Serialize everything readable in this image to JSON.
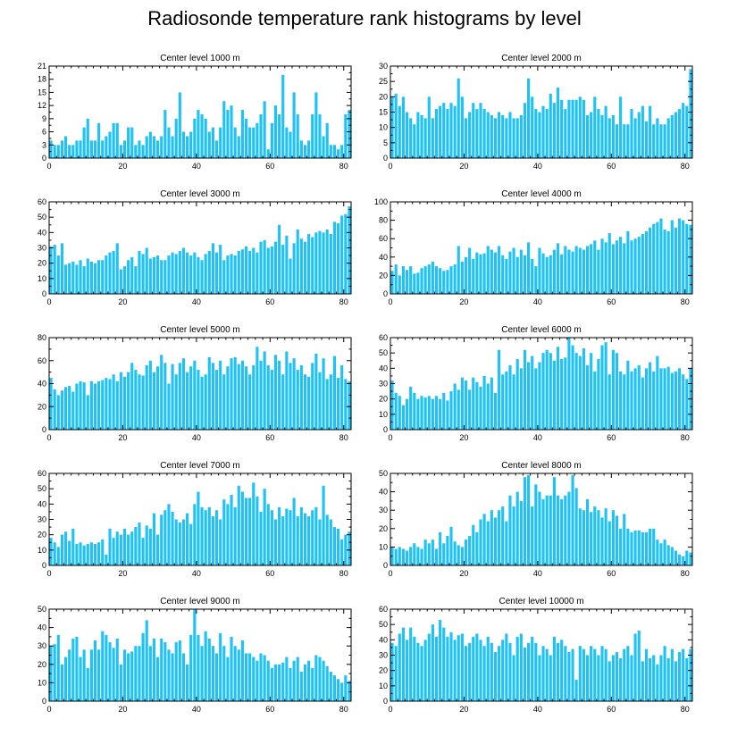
{
  "figure": {
    "title": "Radiosonde temperature rank histograms by level",
    "bar_color": "#1ec2f8",
    "axis_color": "#000000"
  },
  "chart_data": [
    {
      "type": "bar",
      "title": "Center level 1000 m",
      "xlim": [
        0,
        82
      ],
      "ylim": [
        0,
        21
      ],
      "xticks": [
        0,
        20,
        40,
        60,
        80
      ],
      "yticks": [
        0,
        3,
        6,
        9,
        12,
        15,
        18,
        21
      ],
      "values": [
        4,
        3,
        3,
        4,
        5,
        3,
        3,
        4,
        4,
        7,
        9,
        4,
        4,
        8,
        4,
        5,
        6,
        8,
        8,
        3,
        4,
        7,
        7,
        3,
        4,
        3,
        5,
        6,
        5,
        4,
        5,
        11,
        7,
        5,
        9,
        15,
        6,
        5,
        6,
        9,
        11,
        10,
        9,
        6,
        7,
        4,
        7,
        13,
        11,
        12,
        7,
        5,
        11,
        9,
        7,
        7,
        8,
        10,
        13,
        2,
        8,
        12,
        10,
        19,
        7,
        6,
        15,
        10,
        4,
        3,
        4,
        10,
        15,
        10,
        5,
        8,
        3,
        3,
        2,
        3,
        10,
        11
      ]
    },
    {
      "type": "bar",
      "title": "Center level 2000 m",
      "xlim": [
        0,
        82
      ],
      "ylim": [
        0,
        30
      ],
      "xticks": [
        0,
        20,
        40,
        60,
        80
      ],
      "yticks": [
        0,
        5,
        10,
        15,
        20,
        25,
        30
      ],
      "values": [
        20,
        21,
        17,
        20,
        15,
        13,
        11,
        15,
        14,
        13,
        20,
        13,
        16,
        17,
        18,
        16,
        18,
        17,
        26,
        20,
        13,
        15,
        18,
        16,
        18,
        16,
        15,
        14,
        13,
        15,
        14,
        13,
        15,
        13,
        13,
        14,
        18,
        26,
        20,
        16,
        15,
        17,
        16,
        21,
        18,
        23,
        19,
        16,
        19,
        19,
        19,
        20,
        19,
        14,
        15,
        20,
        16,
        14,
        17,
        13,
        14,
        11,
        20,
        11,
        11,
        16,
        13,
        15,
        17,
        12,
        17,
        11,
        13,
        11,
        11,
        13,
        14,
        15,
        16,
        18,
        17,
        29
      ]
    },
    {
      "type": "bar",
      "title": "Center level 3000 m",
      "xlim": [
        0,
        82
      ],
      "ylim": [
        0,
        60
      ],
      "xticks": [
        0,
        20,
        40,
        60,
        80
      ],
      "yticks": [
        0,
        10,
        20,
        30,
        40,
        50,
        60
      ],
      "values": [
        31,
        32,
        25,
        33,
        19,
        20,
        21,
        19,
        22,
        18,
        23,
        21,
        20,
        22,
        22,
        25,
        27,
        28,
        33,
        16,
        18,
        22,
        24,
        18,
        28,
        26,
        30,
        23,
        24,
        25,
        22,
        22,
        25,
        27,
        26,
        28,
        30,
        27,
        25,
        27,
        24,
        22,
        26,
        28,
        33,
        27,
        32,
        22,
        25,
        26,
        25,
        28,
        29,
        31,
        28,
        30,
        27,
        34,
        35,
        30,
        31,
        34,
        45,
        32,
        38,
        23,
        33,
        42,
        36,
        34,
        39,
        37,
        40,
        41,
        40,
        42,
        39,
        47,
        46,
        51,
        52,
        57
      ]
    },
    {
      "type": "bar",
      "title": "Center level 4000 m",
      "xlim": [
        0,
        82
      ],
      "ylim": [
        0,
        100
      ],
      "xticks": [
        0,
        20,
        40,
        60,
        80
      ],
      "yticks": [
        0,
        20,
        40,
        60,
        80,
        100
      ],
      "values": [
        25,
        32,
        20,
        30,
        26,
        30,
        22,
        23,
        28,
        30,
        32,
        35,
        30,
        28,
        25,
        26,
        30,
        32,
        52,
        35,
        40,
        50,
        38,
        45,
        43,
        44,
        52,
        48,
        45,
        52,
        42,
        38,
        46,
        50,
        40,
        48,
        42,
        56,
        38,
        30,
        50,
        44,
        40,
        42,
        48,
        55,
        43,
        52,
        48,
        46,
        52,
        50,
        48,
        52,
        54,
        58,
        48,
        60,
        56,
        66,
        54,
        58,
        62,
        55,
        68,
        58,
        60,
        62,
        65,
        68,
        72,
        76,
        78,
        82,
        70,
        68,
        80,
        72,
        82,
        80,
        76,
        75
      ]
    },
    {
      "type": "bar",
      "title": "Center level 5000 m",
      "xlim": [
        0,
        82
      ],
      "ylim": [
        0,
        80
      ],
      "xticks": [
        0,
        20,
        40,
        60,
        80
      ],
      "yticks": [
        0,
        20,
        40,
        60,
        80
      ],
      "values": [
        45,
        35,
        30,
        34,
        37,
        38,
        33,
        40,
        42,
        41,
        30,
        42,
        40,
        42,
        43,
        45,
        44,
        48,
        42,
        50,
        46,
        50,
        58,
        52,
        48,
        47,
        56,
        60,
        50,
        55,
        65,
        58,
        40,
        57,
        48,
        58,
        62,
        50,
        55,
        60,
        52,
        46,
        48,
        63,
        58,
        52,
        60,
        48,
        55,
        62,
        63,
        57,
        60,
        55,
        48,
        56,
        72,
        60,
        68,
        56,
        52,
        65,
        60,
        48,
        68,
        58,
        62,
        52,
        56,
        48,
        46,
        58,
        66,
        50,
        62,
        44,
        48,
        64,
        45,
        56,
        44,
        42
      ]
    },
    {
      "type": "bar",
      "title": "Center level 6000 m",
      "xlim": [
        0,
        82
      ],
      "ylim": [
        0,
        60
      ],
      "xticks": [
        0,
        20,
        40,
        60,
        80
      ],
      "yticks": [
        0,
        10,
        20,
        30,
        40,
        50,
        60
      ],
      "values": [
        32,
        24,
        22,
        16,
        20,
        28,
        24,
        20,
        22,
        21,
        22,
        20,
        22,
        20,
        24,
        19,
        25,
        30,
        26,
        34,
        32,
        26,
        34,
        31,
        28,
        35,
        30,
        34,
        24,
        52,
        36,
        38,
        42,
        36,
        46,
        40,
        52,
        44,
        48,
        40,
        44,
        50,
        52,
        50,
        45,
        54,
        46,
        47,
        60,
        55,
        50,
        48,
        53,
        42,
        50,
        38,
        46,
        55,
        57,
        36,
        52,
        50,
        38,
        36,
        45,
        38,
        40,
        42,
        34,
        40,
        44,
        38,
        48,
        40,
        40,
        41,
        37,
        38,
        40,
        36,
        33,
        40
      ]
    },
    {
      "type": "bar",
      "title": "Center level 7000 m",
      "xlim": [
        0,
        82
      ],
      "ylim": [
        0,
        60
      ],
      "xticks": [
        0,
        20,
        40,
        60,
        80
      ],
      "yticks": [
        0,
        10,
        20,
        30,
        40,
        50,
        60
      ],
      "values": [
        18,
        15,
        12,
        20,
        22,
        16,
        24,
        14,
        15,
        13,
        14,
        15,
        14,
        15,
        17,
        7,
        24,
        18,
        22,
        20,
        24,
        20,
        22,
        25,
        28,
        18,
        26,
        24,
        34,
        20,
        33,
        36,
        40,
        35,
        30,
        28,
        30,
        34,
        27,
        40,
        48,
        38,
        36,
        38,
        32,
        36,
        30,
        43,
        40,
        46,
        38,
        52,
        48,
        44,
        44,
        54,
        45,
        35,
        50,
        40,
        36,
        30,
        38,
        32,
        37,
        36,
        44,
        32,
        38,
        34,
        32,
        36,
        38,
        30,
        52,
        33,
        30,
        25,
        24,
        17,
        20,
        22
      ]
    },
    {
      "type": "bar",
      "title": "Center level 8000 m",
      "xlim": [
        0,
        82
      ],
      "ylim": [
        0,
        50
      ],
      "xticks": [
        0,
        20,
        40,
        60,
        80
      ],
      "yticks": [
        0,
        10,
        20,
        30,
        40,
        50
      ],
      "values": [
        10,
        9,
        10,
        9,
        8,
        10,
        12,
        10,
        9,
        14,
        12,
        14,
        9,
        18,
        12,
        16,
        21,
        13,
        11,
        10,
        14,
        16,
        22,
        18,
        25,
        28,
        24,
        30,
        26,
        30,
        32,
        24,
        38,
        32,
        40,
        35,
        48,
        49,
        32,
        44,
        40,
        36,
        38,
        38,
        48,
        38,
        36,
        38,
        40,
        49,
        42,
        31,
        30,
        36,
        29,
        32,
        30,
        26,
        31,
        24,
        30,
        27,
        20,
        28,
        20,
        18,
        19,
        19,
        18,
        18,
        20,
        20,
        14,
        12,
        14,
        11,
        10,
        8,
        6,
        5,
        8,
        7
      ]
    },
    {
      "type": "bar",
      "title": "Center level 9000 m",
      "xlim": [
        0,
        82
      ],
      "ylim": [
        0,
        50
      ],
      "xticks": [
        0,
        20,
        40,
        60,
        80
      ],
      "yticks": [
        0,
        10,
        20,
        30,
        40,
        50
      ],
      "values": [
        30,
        31,
        36,
        20,
        24,
        28,
        34,
        35,
        24,
        28,
        18,
        28,
        33,
        28,
        38,
        36,
        32,
        29,
        34,
        20,
        28,
        26,
        27,
        30,
        30,
        37,
        44,
        30,
        34,
        24,
        34,
        32,
        28,
        26,
        32,
        33,
        26,
        20,
        36,
        50,
        36,
        30,
        38,
        34,
        30,
        26,
        37,
        30,
        24,
        35,
        30,
        28,
        33,
        26,
        26,
        24,
        22,
        26,
        25,
        22,
        18,
        20,
        20,
        21,
        24,
        18,
        22,
        24,
        16,
        20,
        22,
        18,
        25,
        24,
        22,
        19,
        16,
        14,
        12,
        10,
        14,
        11
      ]
    },
    {
      "type": "bar",
      "title": "Center level 10000 m",
      "xlim": [
        0,
        82
      ],
      "ylim": [
        0,
        60
      ],
      "xticks": [
        0,
        20,
        40,
        60,
        80
      ],
      "yticks": [
        0,
        10,
        20,
        30,
        40,
        50,
        60
      ],
      "values": [
        38,
        36,
        44,
        48,
        40,
        48,
        42,
        38,
        36,
        40,
        44,
        50,
        42,
        53,
        48,
        42,
        45,
        40,
        43,
        44,
        36,
        38,
        42,
        44,
        40,
        36,
        42,
        38,
        32,
        36,
        40,
        44,
        38,
        30,
        42,
        44,
        35,
        38,
        42,
        38,
        30,
        36,
        34,
        30,
        42,
        38,
        40,
        36,
        32,
        34,
        14,
        36,
        34,
        30,
        36,
        34,
        30,
        36,
        34,
        26,
        30,
        32,
        28,
        34,
        36,
        30,
        44,
        46,
        26,
        34,
        28,
        30,
        24,
        30,
        36,
        28,
        34,
        26,
        32,
        34,
        28,
        34
      ]
    }
  ]
}
